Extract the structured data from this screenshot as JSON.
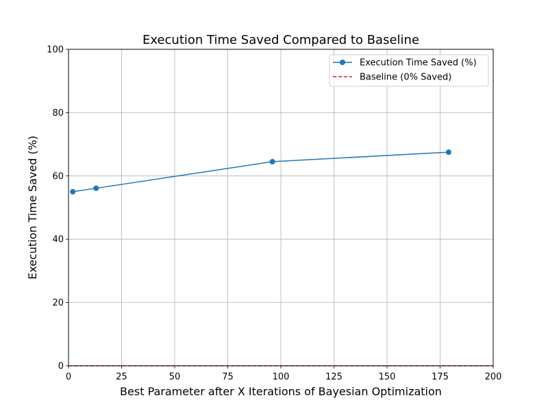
{
  "chart_data": {
    "type": "line",
    "title": "Execution Time Saved Compared to Baseline",
    "xlabel": "Best Parameter after X Iterations of Bayesian Optimization",
    "ylabel": "Execution Time Saved (%)",
    "xlim": [
      0,
      200
    ],
    "ylim": [
      0,
      100
    ],
    "xticks": [
      0,
      25,
      50,
      75,
      100,
      125,
      150,
      175,
      200
    ],
    "yticks": [
      0,
      20,
      40,
      60,
      80,
      100
    ],
    "grid": true,
    "legend_position": "top-right",
    "series": [
      {
        "name": "Execution Time Saved (%)",
        "color": "#1f77b4",
        "style": "solid",
        "marker": "circle",
        "x": [
          2,
          13,
          96,
          179
        ],
        "y": [
          55,
          56.1,
          64.5,
          67.5
        ]
      },
      {
        "name": "Baseline (0% Saved)",
        "color": "#d62728",
        "style": "dashed",
        "marker": "none",
        "x": [
          0,
          200
        ],
        "y": [
          0,
          0
        ]
      }
    ]
  }
}
